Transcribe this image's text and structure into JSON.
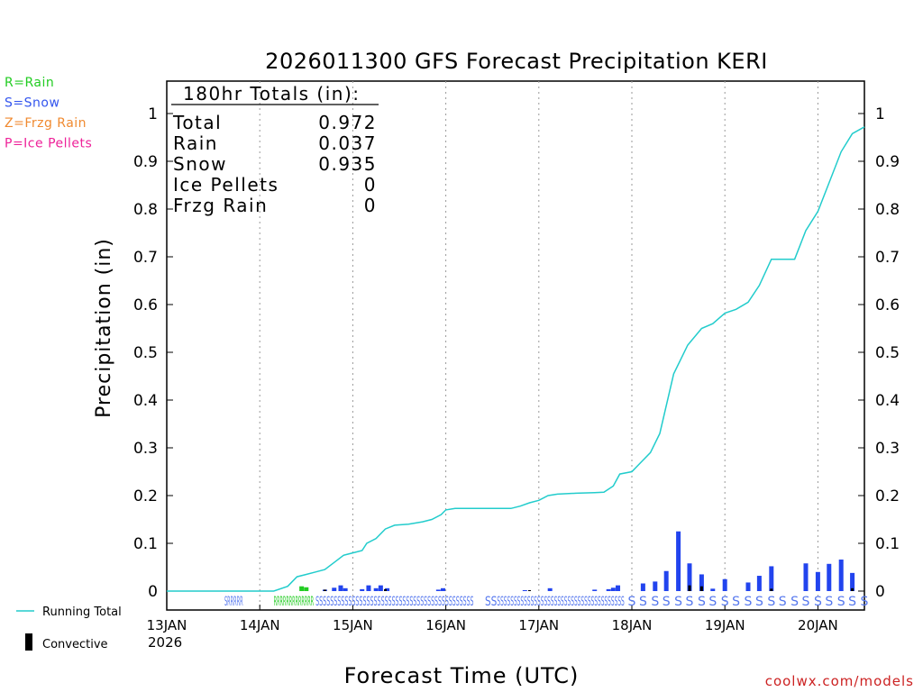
{
  "chart_data": {
    "type": "bar",
    "title": "2026011300 GFS Forecast Precipitation KERI",
    "xlabel": "Forecast Time (UTC)",
    "ylabel": "Precipitation (in)",
    "ylim": [
      0,
      1.05
    ],
    "xlim_days": [
      0,
      7.5
    ],
    "y_ticks": [
      {
        "value": 0,
        "label": "0"
      },
      {
        "value": 0.1,
        "label": "0.1"
      },
      {
        "value": 0.2,
        "label": "0.2"
      },
      {
        "value": 0.3,
        "label": "0.3"
      },
      {
        "value": 0.4,
        "label": "0.4"
      },
      {
        "value": 0.5,
        "label": "0.5"
      },
      {
        "value": 0.6,
        "label": "0.6"
      },
      {
        "value": 0.7,
        "label": "0.7"
      },
      {
        "value": 0.8,
        "label": "0.8"
      },
      {
        "value": 0.9,
        "label": "0.9"
      },
      {
        "value": 1,
        "label": "1"
      }
    ],
    "x_ticks": [
      {
        "day": 0,
        "label": "13JAN"
      },
      {
        "day": 1,
        "label": "14JAN"
      },
      {
        "day": 2,
        "label": "15JAN"
      },
      {
        "day": 3,
        "label": "16JAN"
      },
      {
        "day": 4,
        "label": "17JAN"
      },
      {
        "day": 5,
        "label": "18JAN"
      },
      {
        "day": 6,
        "label": "19JAN"
      },
      {
        "day": 7,
        "label": "20JAN"
      }
    ],
    "year_label": "2026",
    "totals_box": {
      "heading": "180hr Totals (in):",
      "rows": [
        {
          "label": "Total",
          "value": "0.972"
        },
        {
          "label": "Rain",
          "value": "0.037"
        },
        {
          "label": "Snow",
          "value": "0.935"
        },
        {
          "label": "Ice Pellets",
          "value": "0"
        },
        {
          "label": "Frzg Rain",
          "value": "0"
        }
      ]
    },
    "type_legend": [
      {
        "label": "R=Rain",
        "color": "#22cc22"
      },
      {
        "label": "S=Snow",
        "color": "#3355ee"
      },
      {
        "label": "Z=Frzg Rain",
        "color": "#f08a30"
      },
      {
        "label": "P=Ice Pellets",
        "color": "#ee2299"
      }
    ],
    "legend": {
      "running_total": "Running Total",
      "convective": "Convective"
    },
    "colors": {
      "running_total": "#22cccc",
      "rain": "#22cc22",
      "snow": "#2244ee",
      "convective": "#000000",
      "grid": "#999999"
    },
    "running_total": [
      [
        0,
        0
      ],
      [
        1.15,
        0
      ],
      [
        1.3,
        0.01
      ],
      [
        1.4,
        0.03
      ],
      [
        1.5,
        0.035
      ],
      [
        1.6,
        0.04
      ],
      [
        1.7,
        0.045
      ],
      [
        1.8,
        0.06
      ],
      [
        1.9,
        0.075
      ],
      [
        2,
        0.08
      ],
      [
        2.1,
        0.085
      ],
      [
        2.15,
        0.1
      ],
      [
        2.25,
        0.11
      ],
      [
        2.35,
        0.13
      ],
      [
        2.45,
        0.138
      ],
      [
        2.6,
        0.14
      ],
      [
        2.75,
        0.145
      ],
      [
        2.85,
        0.15
      ],
      [
        2.95,
        0.16
      ],
      [
        3.0,
        0.17
      ],
      [
        3.1,
        0.173
      ],
      [
        3.25,
        0.173
      ],
      [
        3.4,
        0.173
      ],
      [
        3.7,
        0.173
      ],
      [
        3.8,
        0.178
      ],
      [
        3.9,
        0.185
      ],
      [
        4.0,
        0.19
      ],
      [
        4.1,
        0.2
      ],
      [
        4.2,
        0.203
      ],
      [
        4.4,
        0.205
      ],
      [
        4.6,
        0.206
      ],
      [
        4.7,
        0.207
      ],
      [
        4.8,
        0.22
      ],
      [
        4.87,
        0.245
      ],
      [
        5.0,
        0.25
      ],
      [
        5.1,
        0.27
      ],
      [
        5.2,
        0.29
      ],
      [
        5.3,
        0.33
      ],
      [
        5.45,
        0.455
      ],
      [
        5.6,
        0.515
      ],
      [
        5.75,
        0.55
      ],
      [
        5.87,
        0.56
      ],
      [
        6.0,
        0.582
      ],
      [
        6.12,
        0.59
      ],
      [
        6.25,
        0.605
      ],
      [
        6.37,
        0.64
      ],
      [
        6.5,
        0.695
      ],
      [
        6.62,
        0.695
      ],
      [
        6.75,
        0.695
      ],
      [
        6.87,
        0.755
      ],
      [
        7.0,
        0.795
      ],
      [
        7.12,
        0.855
      ],
      [
        7.25,
        0.92
      ],
      [
        7.37,
        0.958
      ],
      [
        7.5,
        0.972
      ]
    ],
    "bars": [
      {
        "day": 1.45,
        "value": 0.01,
        "type": "rain"
      },
      {
        "day": 1.5,
        "value": 0.008,
        "type": "rain"
      },
      {
        "day": 1.7,
        "value": 0.003,
        "type": "snow"
      },
      {
        "day": 1.8,
        "value": 0.007,
        "type": "snow"
      },
      {
        "day": 1.87,
        "value": 0.012,
        "type": "snow"
      },
      {
        "day": 1.92,
        "value": 0.006,
        "type": "snow"
      },
      {
        "day": 2.1,
        "value": 0.004,
        "type": "snow"
      },
      {
        "day": 2.17,
        "value": 0.012,
        "type": "snow"
      },
      {
        "day": 2.25,
        "value": 0.006,
        "type": "snow"
      },
      {
        "day": 2.3,
        "value": 0.012,
        "type": "snow"
      },
      {
        "day": 2.37,
        "value": 0.006,
        "type": "snow"
      },
      {
        "day": 2.92,
        "value": 0.003,
        "type": "snow"
      },
      {
        "day": 2.97,
        "value": 0.006,
        "type": "snow"
      },
      {
        "day": 3.85,
        "value": 0.002,
        "type": "snow"
      },
      {
        "day": 4.12,
        "value": 0.006,
        "type": "snow"
      },
      {
        "day": 4.6,
        "value": 0.003,
        "type": "snow"
      },
      {
        "day": 4.75,
        "value": 0.004,
        "type": "snow"
      },
      {
        "day": 4.8,
        "value": 0.007,
        "type": "snow"
      },
      {
        "day": 4.85,
        "value": 0.012,
        "type": "snow"
      },
      {
        "day": 5.12,
        "value": 0.016,
        "type": "snow"
      },
      {
        "day": 5.25,
        "value": 0.02,
        "type": "snow"
      },
      {
        "day": 5.37,
        "value": 0.042,
        "type": "snow"
      },
      {
        "day": 5.5,
        "value": 0.125,
        "type": "snow"
      },
      {
        "day": 5.62,
        "value": 0.058,
        "type": "snow"
      },
      {
        "day": 5.75,
        "value": 0.035,
        "type": "snow"
      },
      {
        "day": 5.87,
        "value": 0.005,
        "type": "snow"
      },
      {
        "day": 6.0,
        "value": 0.025,
        "type": "snow"
      },
      {
        "day": 6.25,
        "value": 0.018,
        "type": "snow"
      },
      {
        "day": 6.37,
        "value": 0.032,
        "type": "snow"
      },
      {
        "day": 6.5,
        "value": 0.052,
        "type": "snow"
      },
      {
        "day": 6.87,
        "value": 0.058,
        "type": "snow"
      },
      {
        "day": 7.0,
        "value": 0.04,
        "type": "snow"
      },
      {
        "day": 7.12,
        "value": 0.057,
        "type": "snow"
      },
      {
        "day": 7.25,
        "value": 0.066,
        "type": "snow"
      },
      {
        "day": 7.37,
        "value": 0.038,
        "type": "snow"
      }
    ],
    "convective": [
      {
        "day": 1.7,
        "value": 0.003
      },
      {
        "day": 2.35,
        "value": 0.004
      },
      {
        "day": 3.9,
        "value": 0.002
      },
      {
        "day": 5.62,
        "value": 0.012
      },
      {
        "day": 5.75,
        "value": 0.01
      },
      {
        "day": 6.5,
        "value": 0.005
      },
      {
        "day": 7.37,
        "value": 0.006
      }
    ],
    "ptype_markers": {
      "dense_spans": [
        {
          "start": 0.62,
          "end": 0.82,
          "text": "SRRRRR"
        },
        {
          "start": 1.15,
          "end": 1.58,
          "text": "RRRRRRRRRRRRR"
        },
        {
          "start": 1.6,
          "end": 2.38,
          "text": "SSSSSSSSSSSSSSSSSSSS"
        },
        {
          "start": 2.38,
          "end": 3.3,
          "text": "SSSSSSSSSSSSSSSSSSSSSSSS"
        },
        {
          "start": 3.42,
          "end": 3.55,
          "text": "SS"
        },
        {
          "start": 3.55,
          "end": 4.92,
          "text": "SSSSSSSSSSSSSSSSSSSSSSSSSSSSSSSSSSSSSS"
        }
      ],
      "sparse_days": [
        5.0,
        5.12,
        5.25,
        5.37,
        5.5,
        5.62,
        5.75,
        5.87,
        6.0,
        6.12,
        6.25,
        6.37,
        6.5,
        6.62,
        6.75,
        6.87,
        7.0,
        7.12,
        7.25,
        7.37,
        7.5
      ],
      "sparse_text": "S"
    },
    "source": "coolwx.com/models"
  }
}
